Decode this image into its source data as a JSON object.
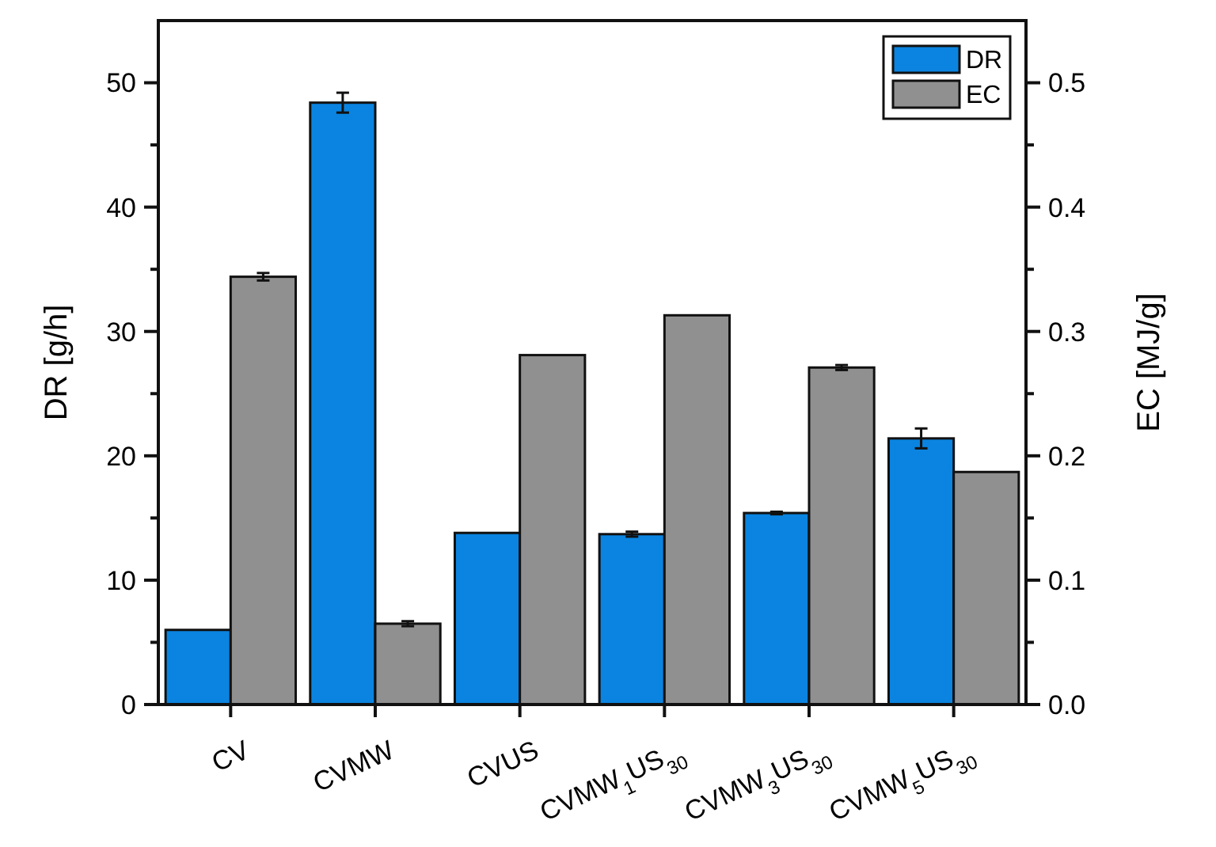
{
  "chart_data": {
    "type": "bar",
    "categories": [
      "CV",
      "CVMW",
      "CVUS",
      "CVMW$_{1}$US$_{30}$",
      "CVMW$_{3}$US$_{30}$",
      "CVMW$_{5}$US$_{30}$"
    ],
    "ylabel": "DR [g/h]",
    "y2label": "EC [MJ/g]",
    "ylim": [
      0,
      55
    ],
    "yticks": [
      0,
      {
        "value": 5,
        "label": null
      },
      10,
      {
        "value": 15,
        "label": null
      },
      20,
      {
        "value": 25,
        "label": null
      },
      30,
      {
        "value": 35,
        "label": null
      },
      40,
      {
        "value": 45,
        "label": null
      },
      50
    ],
    "y2lim": [
      0,
      0.55
    ],
    "y2ticks": [
      {
        "value": 0,
        "label": "0.0"
      },
      {
        "value": 0.05,
        "label": null
      },
      0.1,
      {
        "value": 0.15,
        "label": null
      },
      0.2,
      {
        "value": 0.25,
        "label": null
      },
      0.3,
      {
        "value": 0.35,
        "label": null
      },
      0.4,
      {
        "value": 0.45,
        "label": null
      },
      0.5
    ],
    "legend": "top right",
    "grid": false,
    "series": [
      {
        "name": "DR",
        "color": "#0a84e0",
        "values": [
          6.0,
          48.4,
          13.8,
          13.7,
          15.4,
          21.4
        ],
        "errors": [
          null,
          0.8,
          null,
          0.2,
          0.1,
          0.8
        ]
      },
      {
        "name": "EC",
        "color": "#909090",
        "axis": "y2",
        "values": [
          0.344,
          0.065,
          0.281,
          0.313,
          0.271,
          0.187
        ],
        "errors": [
          0.003,
          0.002,
          null,
          null,
          0.002,
          null
        ]
      }
    ]
  }
}
